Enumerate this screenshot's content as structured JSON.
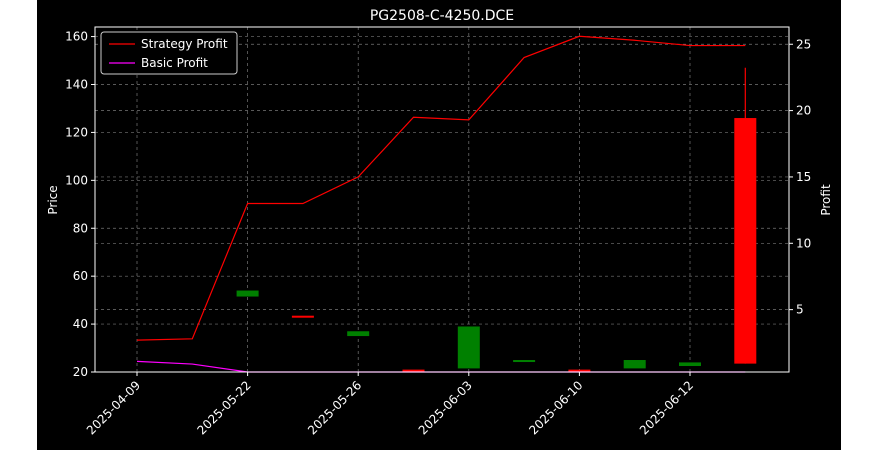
{
  "chart_data": {
    "type": "candlestick+line",
    "title": "PG2508-C-4250.DCE",
    "ylabel_left": "Price",
    "ylabel_right": "Profit",
    "ylim_left": [
      20,
      164
    ],
    "ylim_right": [
      0.3,
      26.3
    ],
    "yticks_left": [
      20,
      40,
      60,
      80,
      100,
      120,
      140,
      160
    ],
    "yticks_right": [
      5,
      10,
      15,
      20,
      25
    ],
    "xtick_labels": [
      "2025-04-09",
      "2025-05-22",
      "2025-05-26",
      "2025-06-03",
      "2025-06-10",
      "2025-06-12"
    ],
    "xtick_indices": [
      0,
      2,
      4,
      6,
      8,
      10
    ],
    "grid": true,
    "legend_position": "top-left",
    "colors": {
      "up": "#ff0000",
      "down": "#008000",
      "strategy": "#ff0000",
      "basic": "#ff00ff"
    },
    "candles": [
      {
        "i": 2,
        "open": 54,
        "close": 51.5,
        "high": 54,
        "low": 51.5
      },
      {
        "i": 3,
        "open": 43.5,
        "close": 43.5,
        "high": 43.5,
        "low": 43.5
      },
      {
        "i": 4,
        "open": 37,
        "close": 35,
        "high": 37,
        "low": 35
      },
      {
        "i": 5,
        "open": 21,
        "close": 21,
        "high": 21,
        "low": 21
      },
      {
        "i": 6,
        "open": 39,
        "close": 21.5,
        "high": 39,
        "low": 21.5
      },
      {
        "i": 7,
        "open": 25,
        "close": 24.5,
        "high": 25,
        "low": 24.5
      },
      {
        "i": 8,
        "open": 21,
        "close": 21,
        "high": 21,
        "low": 21
      },
      {
        "i": 9,
        "open": 25,
        "close": 21.5,
        "high": 25,
        "low": 21.5
      },
      {
        "i": 10,
        "open": 24,
        "close": 22.5,
        "high": 24,
        "low": 22.5
      },
      {
        "i": 11,
        "open": 23.5,
        "close": 126,
        "high": 147,
        "low": 23.5
      }
    ],
    "series": [
      {
        "name": "Strategy Profit",
        "axis": "right",
        "x": [
          0,
          1,
          2,
          3,
          4,
          5,
          6,
          7,
          8,
          9,
          10,
          11
        ],
        "values": [
          2.7,
          2.8,
          13.0,
          13.0,
          15.0,
          19.5,
          19.3,
          24.0,
          25.6,
          25.3,
          24.9,
          24.9
        ]
      },
      {
        "name": "Basic Profit",
        "axis": "right",
        "x": [
          0,
          1,
          2,
          3,
          4,
          5,
          6,
          7,
          8,
          9,
          10,
          11
        ],
        "values": [
          1.1,
          0.9,
          0.3,
          0.3,
          0.3,
          0.3,
          0.3,
          0.3,
          0.3,
          0.3,
          0.3,
          0.3
        ]
      }
    ]
  }
}
